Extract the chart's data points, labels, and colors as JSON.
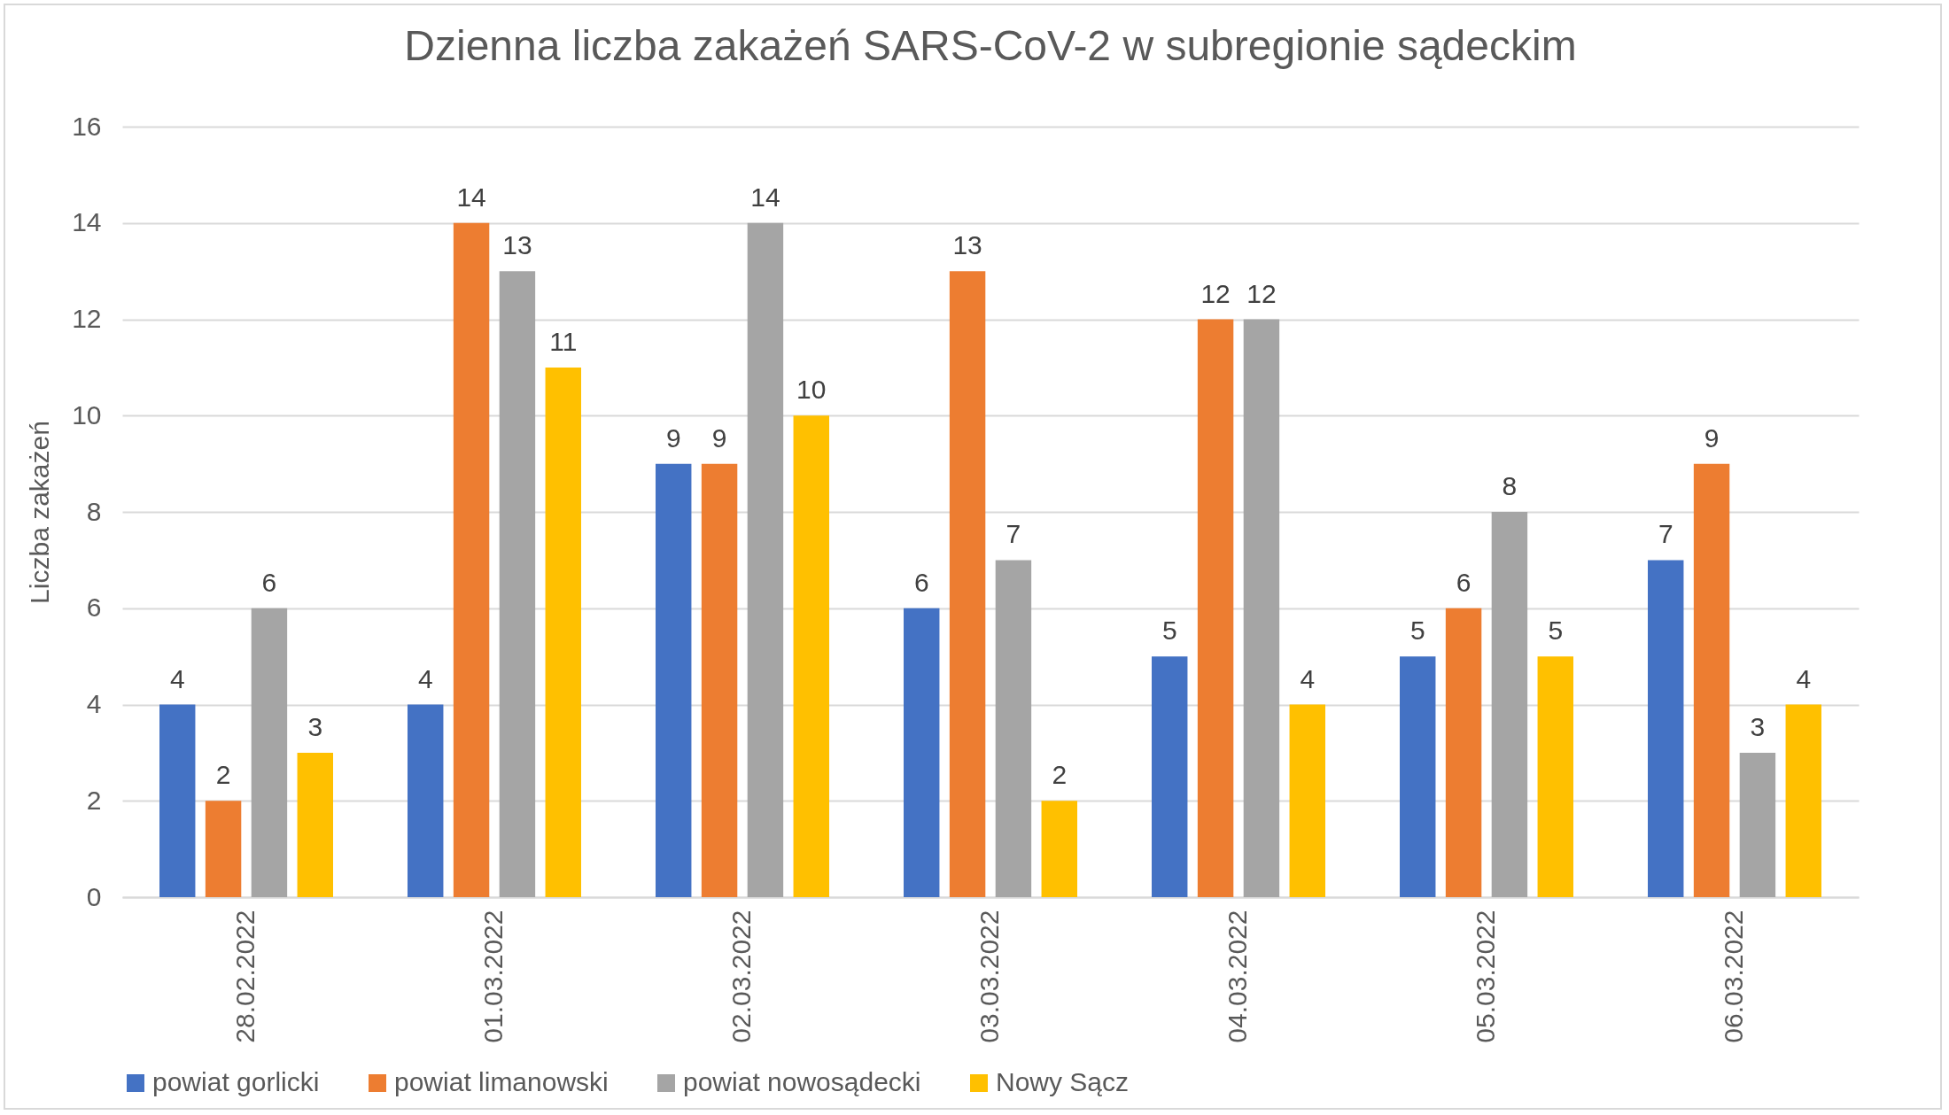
{
  "chart_data": {
    "type": "bar",
    "title": "Dzienna liczba zakażeń SARS-CoV-2 w subregionie sądeckim",
    "ylabel": "Liczba zakażeń",
    "categories": [
      "28.02.2022",
      "01.03.2022",
      "02.03.2022",
      "03.03.2022",
      "04.03.2022",
      "05.03.2022",
      "06.03.2022"
    ],
    "series": [
      {
        "name": "powiat gorlicki",
        "color": "#4472c4",
        "values": [
          4,
          4,
          9,
          6,
          5,
          5,
          7
        ]
      },
      {
        "name": "powiat limanowski",
        "color": "#ed7d31",
        "values": [
          2,
          14,
          9,
          13,
          12,
          6,
          9
        ]
      },
      {
        "name": "powiat nowosądecki",
        "color": "#a5a5a5",
        "values": [
          6,
          13,
          14,
          7,
          12,
          8,
          3
        ]
      },
      {
        "name": "Nowy Sącz",
        "color": "#ffc000",
        "values": [
          3,
          11,
          10,
          2,
          4,
          5,
          4
        ]
      }
    ],
    "ylim": [
      0,
      16
    ],
    "yticks": [
      0,
      2,
      4,
      6,
      8,
      10,
      12,
      14,
      16
    ],
    "grid": "y",
    "legend": "bottom",
    "data_labels": true
  }
}
